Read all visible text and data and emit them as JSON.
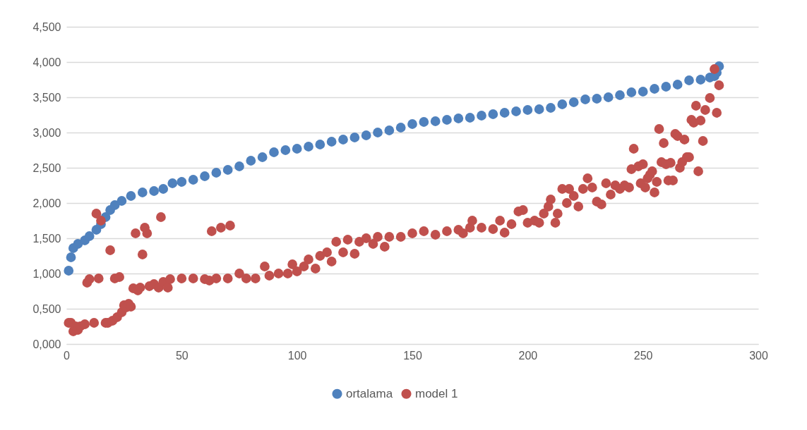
{
  "chart_data": {
    "type": "scatter",
    "marker": "circle",
    "grid": "y",
    "legend": "bottom",
    "xlim": [
      0,
      300
    ],
    "xticks": [
      0,
      50,
      100,
      150,
      200,
      250,
      300
    ],
    "ylim": [
      0,
      4.5
    ],
    "yticks": [
      {
        "value": 0,
        "label": "0,000"
      },
      {
        "value": 0.5,
        "label": "0,500"
      },
      {
        "value": 1,
        "label": "1,000"
      },
      {
        "value": 1.5,
        "label": "1,500"
      },
      {
        "value": 2,
        "label": "2,000"
      },
      {
        "value": 2.5,
        "label": "2,500"
      },
      {
        "value": 3,
        "label": "3,000"
      },
      {
        "value": 3.5,
        "label": "3,500"
      },
      {
        "value": 4,
        "label": "4,000"
      },
      {
        "value": 4.5,
        "label": "4,500"
      }
    ],
    "series": [
      {
        "name": "ortalama",
        "color": "#4f81bd",
        "x": [
          1,
          2,
          3,
          5,
          8,
          10,
          13,
          15,
          17,
          19,
          21,
          24,
          28,
          33,
          38,
          42,
          46,
          50,
          55,
          60,
          65,
          70,
          75,
          80,
          85,
          90,
          95,
          100,
          105,
          110,
          115,
          120,
          125,
          130,
          135,
          140,
          145,
          150,
          155,
          160,
          165,
          170,
          175,
          180,
          185,
          190,
          195,
          200,
          205,
          210,
          215,
          220,
          225,
          230,
          235,
          240,
          245,
          250,
          255,
          260,
          265,
          270,
          275,
          279,
          281,
          282,
          283
        ],
        "values": [
          1.04,
          1.23,
          1.36,
          1.42,
          1.47,
          1.53,
          1.62,
          1.7,
          1.8,
          1.9,
          1.97,
          2.03,
          2.1,
          2.15,
          2.17,
          2.2,
          2.28,
          2.3,
          2.33,
          2.38,
          2.43,
          2.47,
          2.52,
          2.6,
          2.65,
          2.72,
          2.75,
          2.77,
          2.8,
          2.83,
          2.87,
          2.9,
          2.93,
          2.96,
          3.0,
          3.03,
          3.07,
          3.12,
          3.15,
          3.16,
          3.18,
          3.2,
          3.21,
          3.24,
          3.26,
          3.28,
          3.3,
          3.32,
          3.33,
          3.35,
          3.4,
          3.43,
          3.47,
          3.48,
          3.5,
          3.53,
          3.57,
          3.58,
          3.62,
          3.65,
          3.68,
          3.74,
          3.75,
          3.78,
          3.8,
          3.85,
          3.94
        ]
      },
      {
        "name": "model 1",
        "color": "#c0504d",
        "x": [
          1,
          2,
          3,
          4,
          5,
          6,
          8,
          9,
          10,
          12,
          13,
          14,
          15,
          17,
          18,
          19,
          20,
          21,
          22,
          23,
          24,
          25,
          26,
          27,
          28,
          29,
          30,
          31,
          32,
          33,
          34,
          35,
          36,
          38,
          40,
          41,
          42,
          44,
          45,
          50,
          55,
          60,
          62,
          63,
          65,
          67,
          70,
          71,
          75,
          78,
          82,
          86,
          88,
          92,
          96,
          98,
          100,
          103,
          105,
          108,
          110,
          113,
          115,
          117,
          120,
          122,
          125,
          127,
          130,
          133,
          135,
          138,
          140,
          145,
          150,
          155,
          160,
          165,
          170,
          172,
          175,
          176,
          180,
          185,
          188,
          190,
          193,
          196,
          198,
          200,
          203,
          205,
          207,
          209,
          210,
          212,
          213,
          215,
          217,
          218,
          220,
          222,
          224,
          226,
          228,
          230,
          232,
          234,
          236,
          238,
          240,
          242,
          244,
          245,
          246,
          248,
          249,
          250,
          251,
          252,
          253,
          254,
          255,
          256,
          257,
          258,
          259,
          260,
          261,
          262,
          263,
          264,
          265,
          266,
          267,
          268,
          269,
          270,
          271,
          272,
          273,
          274,
          275,
          276,
          277,
          279,
          281,
          282,
          283
        ],
        "values": [
          0.3,
          0.3,
          0.18,
          0.25,
          0.2,
          0.25,
          0.28,
          0.87,
          0.92,
          0.3,
          1.85,
          0.93,
          1.75,
          0.3,
          0.3,
          1.33,
          0.33,
          0.93,
          0.38,
          0.95,
          0.45,
          0.55,
          0.52,
          0.57,
          0.53,
          0.79,
          1.57,
          0.76,
          0.8,
          1.27,
          1.65,
          1.57,
          0.82,
          0.85,
          0.8,
          1.8,
          0.88,
          0.8,
          0.92,
          0.93,
          0.93,
          0.92,
          0.9,
          1.6,
          0.93,
          1.65,
          0.93,
          1.68,
          1.0,
          0.93,
          0.93,
          1.1,
          0.97,
          1.0,
          1.0,
          1.13,
          1.03,
          1.1,
          1.2,
          1.07,
          1.25,
          1.3,
          1.17,
          1.45,
          1.3,
          1.48,
          1.28,
          1.45,
          1.5,
          1.42,
          1.52,
          1.38,
          1.52,
          1.52,
          1.57,
          1.6,
          1.55,
          1.6,
          1.62,
          1.57,
          1.65,
          1.75,
          1.65,
          1.63,
          1.75,
          1.58,
          1.7,
          1.88,
          1.9,
          1.72,
          1.75,
          1.72,
          1.85,
          1.95,
          2.05,
          1.72,
          1.85,
          2.2,
          2.0,
          2.2,
          2.1,
          1.95,
          2.2,
          2.35,
          2.22,
          2.02,
          1.98,
          2.28,
          2.12,
          2.25,
          2.2,
          2.25,
          2.22,
          2.48,
          2.77,
          2.52,
          2.28,
          2.55,
          2.22,
          2.35,
          2.4,
          2.45,
          2.15,
          2.3,
          3.05,
          2.58,
          2.85,
          2.55,
          2.32,
          2.57,
          2.32,
          2.98,
          2.95,
          2.5,
          2.58,
          2.9,
          2.65,
          2.65,
          3.18,
          3.14,
          3.38,
          2.45,
          3.17,
          2.88,
          3.32,
          3.49,
          3.9,
          3.28,
          3.67
        ]
      }
    ]
  }
}
